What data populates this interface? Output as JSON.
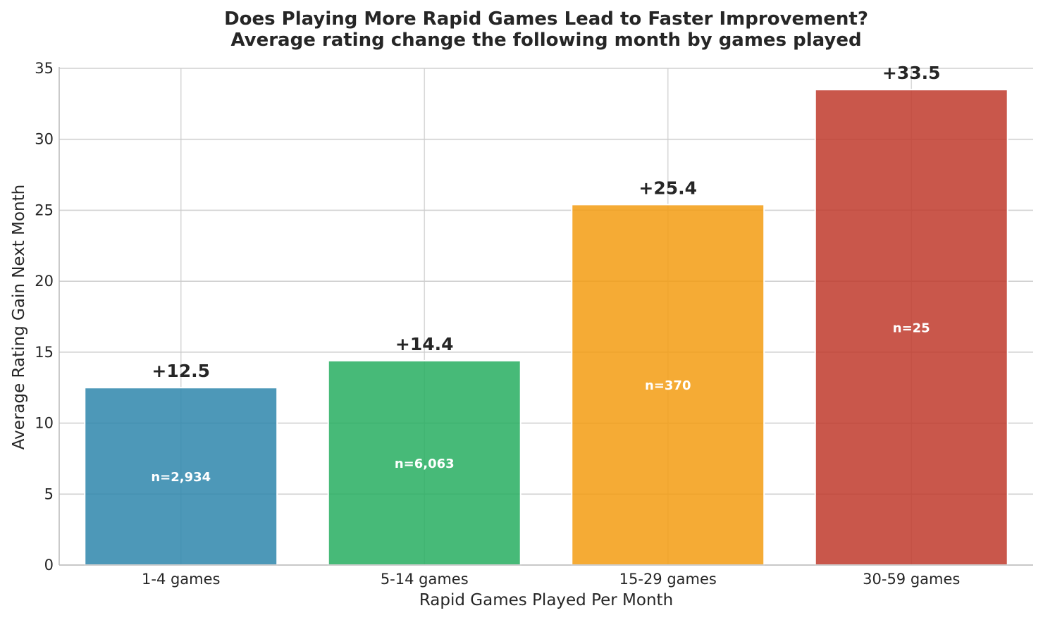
{
  "chart_data": {
    "type": "bar",
    "title": "Does Playing More Rapid Games Lead to Faster Improvement?",
    "subtitle": "Average rating change the following month by games played",
    "xlabel": "Rapid Games Played Per Month",
    "ylabel": "Average Rating Gain Next Month",
    "categories": [
      "1-4 games",
      "5-14 games",
      "15-29 games",
      "30-59 games"
    ],
    "values": [
      12.5,
      14.4,
      25.4,
      33.5
    ],
    "value_labels": [
      "+12.5",
      "+14.4",
      "+25.4",
      "+33.5"
    ],
    "sample_labels": [
      "n=2,934",
      "n=6,063",
      "n=370",
      "n=25"
    ],
    "colors": [
      "#2e86ab",
      "#27ae60",
      "#f39c12",
      "#c0392b"
    ],
    "ylim": [
      0,
      35
    ],
    "yticks": [
      "0",
      "5",
      "10",
      "15",
      "20",
      "25",
      "30",
      "35"
    ],
    "grid": true,
    "legend": "none"
  }
}
